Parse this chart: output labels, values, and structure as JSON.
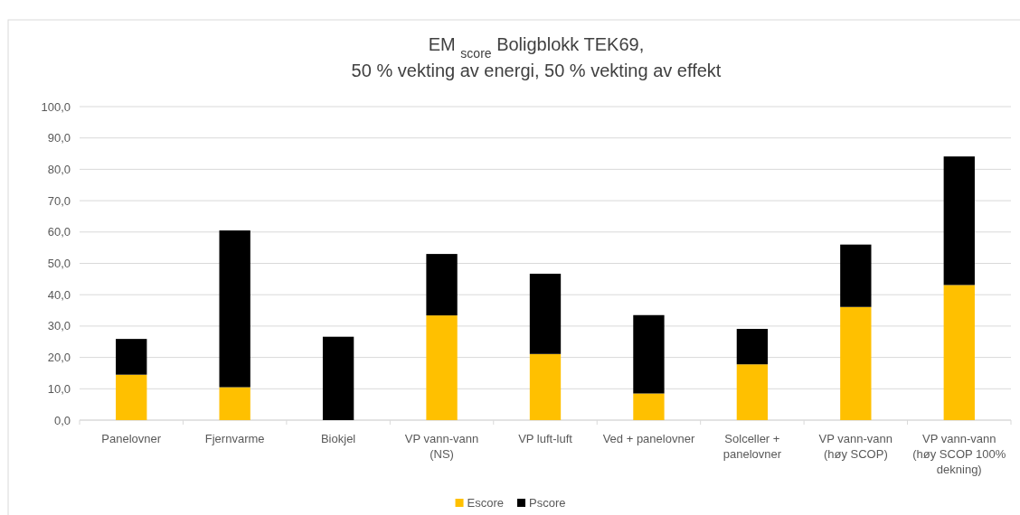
{
  "chart_data": {
    "type": "bar",
    "title": "EM $_{score}$ Boligblokk TEK69,\n50 % vekting av energi, 50 % vekting av effekt",
    "categories": [
      "Panelovner",
      "Fjernvarme",
      "Biokjel",
      "VP vann-vann (NS)",
      "VP luft-luft",
      "Ved + panelovner",
      "Solceller + panelovner",
      "VP vann-vann (høy SCOP)",
      "VP vann-vann (høy SCOP 100% dekning)"
    ],
    "series": [
      {
        "name": "Escore",
        "color": "#ffc000",
        "values": [
          14.5,
          10.5,
          0,
          33.4,
          21.1,
          8.5,
          17.8,
          36.1,
          43.1
        ]
      },
      {
        "name": "Pscore",
        "color": "#000000",
        "values": [
          11.4,
          50.0,
          26.6,
          19.6,
          25.6,
          25.0,
          11.3,
          19.9,
          41.0
        ]
      }
    ],
    "stacked": true,
    "ylim": [
      0,
      100
    ],
    "yticks": [
      {
        "value": 0,
        "label": "0,0"
      },
      {
        "value": 10,
        "label": "10,0"
      },
      {
        "value": 20,
        "label": "20,0"
      },
      {
        "value": 30,
        "label": "30,0"
      },
      {
        "value": 40,
        "label": "40,0"
      },
      {
        "value": 50,
        "label": "50,0"
      },
      {
        "value": 60,
        "label": "60,0"
      },
      {
        "value": 70,
        "label": "70,0"
      },
      {
        "value": 80,
        "label": "80,0"
      },
      {
        "value": 90,
        "label": "90,0"
      },
      {
        "value": 100,
        "label": "100,0"
      }
    ],
    "grid": "y",
    "legend": "bottom"
  }
}
